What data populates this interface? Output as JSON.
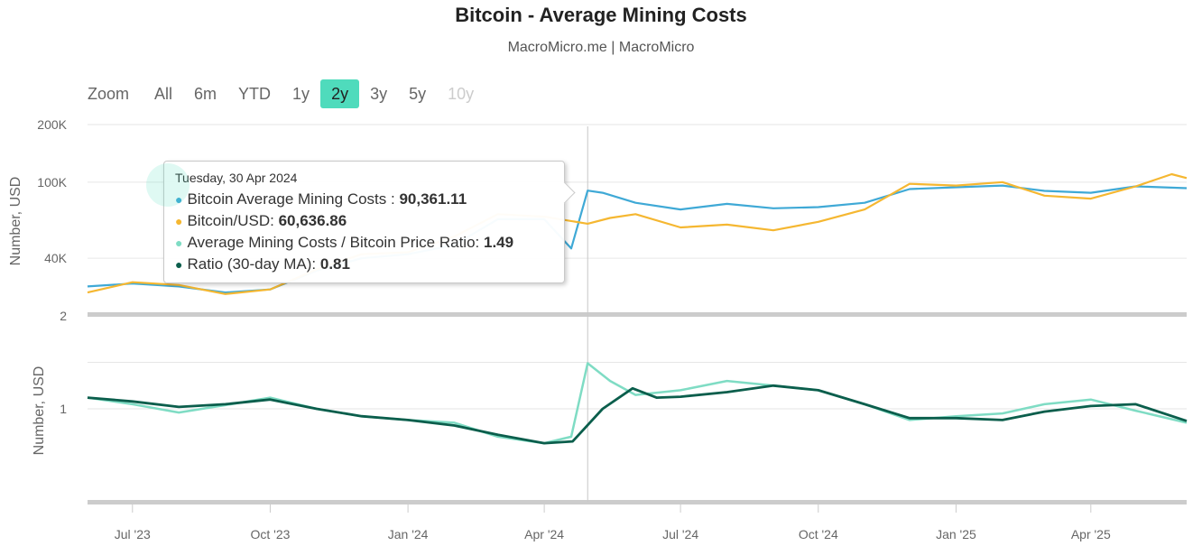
{
  "header": {
    "title": "Bitcoin - Average Mining Costs",
    "subtitle": "MacroMicro.me | MacroMicro"
  },
  "zoom": {
    "label": "Zoom",
    "buttons": [
      {
        "label": "All",
        "state": "normal"
      },
      {
        "label": "6m",
        "state": "normal"
      },
      {
        "label": "YTD",
        "state": "normal"
      },
      {
        "label": "1y",
        "state": "normal"
      },
      {
        "label": "2y",
        "state": "active"
      },
      {
        "label": "3y",
        "state": "normal"
      },
      {
        "label": "5y",
        "state": "normal"
      },
      {
        "label": "10y",
        "state": "disabled"
      }
    ]
  },
  "tooltip": {
    "date": "Tuesday, 30 Apr 2024",
    "rows": [
      {
        "label": "Bitcoin Average Mining Costs :",
        "value": "90,361.11",
        "color": "#3fa9d6"
      },
      {
        "label": "Bitcoin/USD:",
        "value": "60,636.86",
        "color": "#f5b731"
      },
      {
        "label": "Average Mining Costs / Bitcoin Price Ratio:",
        "value": "1.49",
        "color": "#7fdcc4"
      },
      {
        "label": "Ratio (30-day MA):",
        "value": "0.81",
        "color": "#0b5e4c"
      }
    ]
  },
  "colors": {
    "mining_cost": "#3fa9d6",
    "btc_price": "#f5b731",
    "ratio": "#7fdcc4",
    "ratio_ma": "#0b5e4c",
    "zoom_active": "#4fdbbc"
  },
  "chart_data": [
    {
      "type": "line",
      "panel": "upper",
      "ylabel": "Number, USD",
      "yscale": "log",
      "ylim": [
        20000,
        200000
      ],
      "yticks": [
        {
          "value": 40000,
          "label": "40K"
        },
        {
          "value": 100000,
          "label": "100K"
        },
        {
          "value": 200000,
          "label": "200K"
        }
      ],
      "x_date_range": [
        "2023-06-01",
        "2025-06-04"
      ],
      "xticks": [
        {
          "date": "2023-07-01",
          "label": "Jul '23"
        },
        {
          "date": "2023-10-01",
          "label": "Oct '23"
        },
        {
          "date": "2024-01-01",
          "label": "Jan '24"
        },
        {
          "date": "2024-04-01",
          "label": "Apr '24"
        },
        {
          "date": "2024-07-01",
          "label": "Jul '24"
        },
        {
          "date": "2024-10-01",
          "label": "Oct '24"
        },
        {
          "date": "2025-01-01",
          "label": "Jan '25"
        },
        {
          "date": "2025-04-01",
          "label": "Apr '25"
        }
      ],
      "crosshair_date": "2024-04-30",
      "series": [
        {
          "name": "Bitcoin Average Mining Costs",
          "points": [
            [
              "2023-06-01",
              28500
            ],
            [
              "2023-07-01",
              29500
            ],
            [
              "2023-08-01",
              28500
            ],
            [
              "2023-09-01",
              26500
            ],
            [
              "2023-10-01",
              27500
            ],
            [
              "2023-11-01",
              34500
            ],
            [
              "2023-12-01",
              40000
            ],
            [
              "2024-01-01",
              42000
            ],
            [
              "2024-02-01",
              47000
            ],
            [
              "2024-03-01",
              64000
            ],
            [
              "2024-04-01",
              64000
            ],
            [
              "2024-04-19",
              45000
            ],
            [
              "2024-04-30",
              90361
            ],
            [
              "2024-05-10",
              88000
            ],
            [
              "2024-06-01",
              78000
            ],
            [
              "2024-07-01",
              72000
            ],
            [
              "2024-08-01",
              77000
            ],
            [
              "2024-09-01",
              73000
            ],
            [
              "2024-10-01",
              74000
            ],
            [
              "2024-11-01",
              78000
            ],
            [
              "2024-12-01",
              92000
            ],
            [
              "2025-01-01",
              94000
            ],
            [
              "2025-02-01",
              96000
            ],
            [
              "2025-03-01",
              90000
            ],
            [
              "2025-04-01",
              88000
            ],
            [
              "2025-05-01",
              95000
            ],
            [
              "2025-06-04",
              93000
            ]
          ]
        },
        {
          "name": "Bitcoin/USD",
          "points": [
            [
              "2023-06-01",
              26500
            ],
            [
              "2023-07-01",
              30000
            ],
            [
              "2023-08-01",
              29000
            ],
            [
              "2023-09-01",
              26000
            ],
            [
              "2023-10-01",
              27500
            ],
            [
              "2023-11-01",
              35000
            ],
            [
              "2023-12-01",
              42000
            ],
            [
              "2024-01-01",
              43000
            ],
            [
              "2024-02-01",
              52000
            ],
            [
              "2024-03-01",
              68000
            ],
            [
              "2024-04-01",
              66000
            ],
            [
              "2024-04-30",
              60637
            ],
            [
              "2024-05-15",
              65000
            ],
            [
              "2024-06-01",
              68000
            ],
            [
              "2024-07-01",
              58000
            ],
            [
              "2024-08-01",
              60000
            ],
            [
              "2024-09-01",
              56000
            ],
            [
              "2024-10-01",
              62000
            ],
            [
              "2024-11-01",
              72000
            ],
            [
              "2024-12-01",
              98000
            ],
            [
              "2025-01-01",
              96000
            ],
            [
              "2025-02-01",
              100000
            ],
            [
              "2025-03-01",
              85000
            ],
            [
              "2025-04-01",
              82000
            ],
            [
              "2025-05-01",
              95000
            ],
            [
              "2025-05-25",
              110000
            ],
            [
              "2025-06-04",
              105000
            ]
          ]
        }
      ]
    },
    {
      "type": "line",
      "panel": "lower",
      "ylabel": "Number, USD",
      "ylim": [
        0,
        2
      ],
      "yticks": [
        {
          "value": 1,
          "label": "1"
        },
        {
          "value": 2,
          "label": "2"
        }
      ],
      "x_date_range": [
        "2023-06-01",
        "2025-06-04"
      ],
      "series": [
        {
          "name": "Average Mining Costs / Bitcoin Price Ratio",
          "points": [
            [
              "2023-06-01",
              1.12
            ],
            [
              "2023-07-01",
              1.05
            ],
            [
              "2023-08-01",
              0.96
            ],
            [
              "2023-09-01",
              1.04
            ],
            [
              "2023-10-01",
              1.12
            ],
            [
              "2023-11-01",
              1.0
            ],
            [
              "2023-12-01",
              0.92
            ],
            [
              "2024-01-01",
              0.88
            ],
            [
              "2024-02-01",
              0.85
            ],
            [
              "2024-03-01",
              0.7
            ],
            [
              "2024-04-01",
              0.63
            ],
            [
              "2024-04-19",
              0.7
            ],
            [
              "2024-04-30",
              1.49
            ],
            [
              "2024-05-15",
              1.3
            ],
            [
              "2024-06-01",
              1.15
            ],
            [
              "2024-07-01",
              1.2
            ],
            [
              "2024-08-01",
              1.3
            ],
            [
              "2024-09-01",
              1.25
            ],
            [
              "2024-10-01",
              1.2
            ],
            [
              "2024-11-01",
              1.05
            ],
            [
              "2024-12-01",
              0.88
            ],
            [
              "2025-01-01",
              0.92
            ],
            [
              "2025-02-01",
              0.95
            ],
            [
              "2025-03-01",
              1.05
            ],
            [
              "2025-04-01",
              1.1
            ],
            [
              "2025-05-01",
              0.98
            ],
            [
              "2025-06-04",
              0.85
            ]
          ]
        },
        {
          "name": "Ratio (30-day MA)",
          "points": [
            [
              "2023-06-01",
              1.12
            ],
            [
              "2023-07-01",
              1.08
            ],
            [
              "2023-08-01",
              1.02
            ],
            [
              "2023-09-01",
              1.05
            ],
            [
              "2023-10-01",
              1.1
            ],
            [
              "2023-11-01",
              1.0
            ],
            [
              "2023-12-01",
              0.92
            ],
            [
              "2024-01-01",
              0.88
            ],
            [
              "2024-02-01",
              0.82
            ],
            [
              "2024-03-01",
              0.72
            ],
            [
              "2024-04-01",
              0.63
            ],
            [
              "2024-04-20",
              0.65
            ],
            [
              "2024-05-10",
              1.0
            ],
            [
              "2024-05-30",
              1.22
            ],
            [
              "2024-06-15",
              1.12
            ],
            [
              "2024-07-01",
              1.13
            ],
            [
              "2024-08-01",
              1.18
            ],
            [
              "2024-09-01",
              1.25
            ],
            [
              "2024-10-01",
              1.2
            ],
            [
              "2024-11-01",
              1.05
            ],
            [
              "2024-12-01",
              0.9
            ],
            [
              "2025-01-01",
              0.9
            ],
            [
              "2025-02-01",
              0.88
            ],
            [
              "2025-03-01",
              0.97
            ],
            [
              "2025-04-01",
              1.03
            ],
            [
              "2025-05-01",
              1.05
            ],
            [
              "2025-06-04",
              0.87
            ]
          ]
        }
      ]
    }
  ]
}
